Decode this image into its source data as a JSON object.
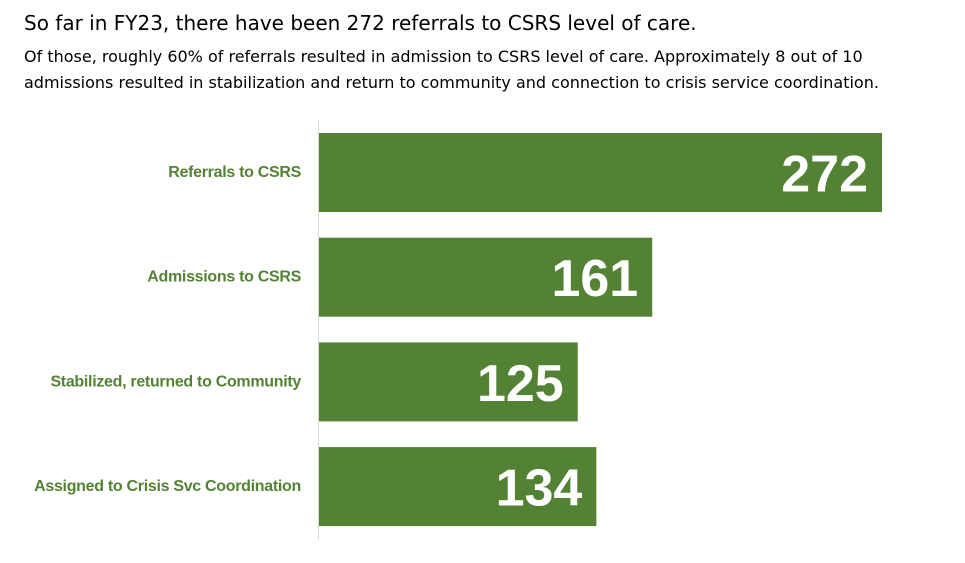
{
  "header": {
    "title": "So far in FY23, there have been 272 referrals to CSRS level of care.",
    "subtitle": "Of those, roughly 60% of referrals resulted in admission to CSRS level of care.  Approximately 8 out of 10 admissions resulted in stabilization and return to community and connection to crisis service coordination."
  },
  "colors": {
    "bar": "#548235",
    "label": "#548235",
    "value_text": "#ffffff",
    "axis": "#d9d9d9"
  },
  "chart_data": {
    "type": "bar",
    "orientation": "horizontal",
    "categories": [
      "Referrals to CSRS",
      "Admissions to CSRS",
      "Stabilized, returned to Community",
      "Assigned to Crisis Svc Coordination"
    ],
    "values": [
      272,
      161,
      125,
      134
    ],
    "data_labels": [
      "272",
      "161",
      "125",
      "134"
    ],
    "xlim": [
      0,
      272
    ],
    "grid": false,
    "legend": "none"
  }
}
